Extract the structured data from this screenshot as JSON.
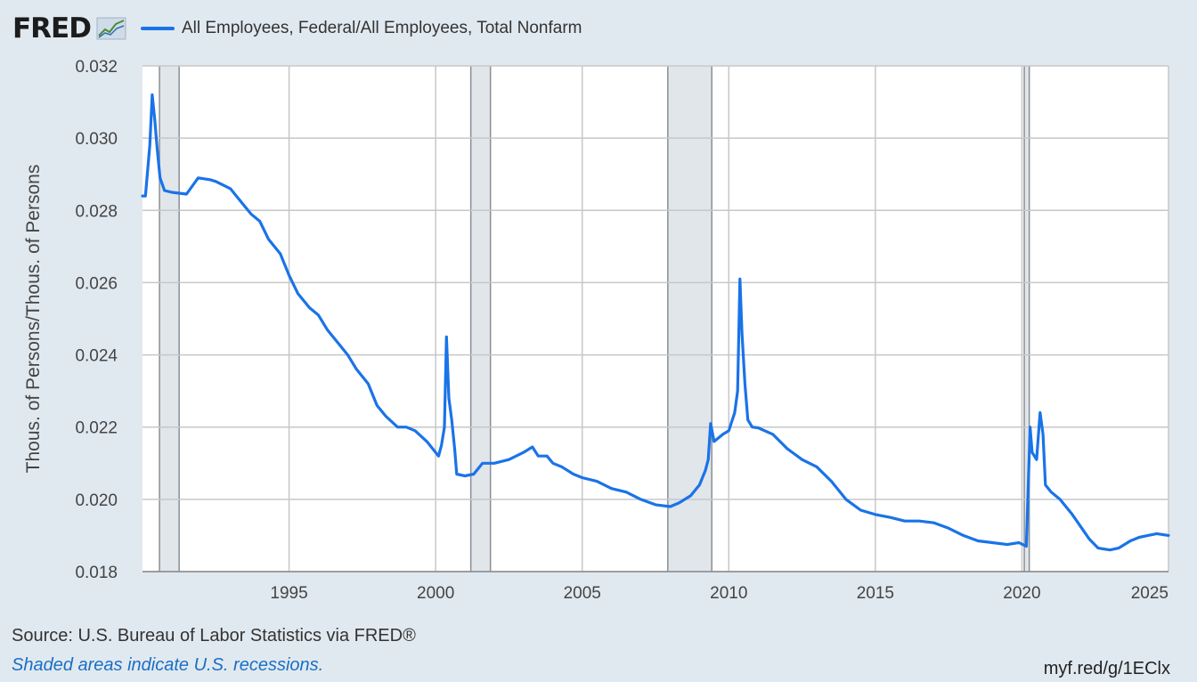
{
  "header": {
    "logo": "FRED",
    "logo_icon": "line-graph-icon"
  },
  "chart_data": {
    "type": "line",
    "title": "",
    "series": [
      {
        "name": "All Employees, Federal/All Employees, Total Nonfarm",
        "color": "#1a73e8",
        "points": [
          [
            1990.0,
            0.0284
          ],
          [
            1990.1,
            0.0284
          ],
          [
            1990.25,
            0.0298
          ],
          [
            1990.33,
            0.0312
          ],
          [
            1990.42,
            0.0305
          ],
          [
            1990.5,
            0.0297
          ],
          [
            1990.6,
            0.0289
          ],
          [
            1990.75,
            0.02855
          ],
          [
            1991.0,
            0.0285
          ],
          [
            1991.5,
            0.02845
          ],
          [
            1991.9,
            0.0289
          ],
          [
            1992.3,
            0.02885
          ],
          [
            1992.5,
            0.0288
          ],
          [
            1993.0,
            0.0286
          ],
          [
            1993.3,
            0.0283
          ],
          [
            1993.7,
            0.0279
          ],
          [
            1994.0,
            0.0277
          ],
          [
            1994.3,
            0.0272
          ],
          [
            1994.7,
            0.0268
          ],
          [
            1995.0,
            0.0262
          ],
          [
            1995.3,
            0.0257
          ],
          [
            1995.7,
            0.0253
          ],
          [
            1996.0,
            0.0251
          ],
          [
            1996.3,
            0.0247
          ],
          [
            1996.7,
            0.0243
          ],
          [
            1997.0,
            0.024
          ],
          [
            1997.3,
            0.0236
          ],
          [
            1997.7,
            0.0232
          ],
          [
            1998.0,
            0.0226
          ],
          [
            1998.3,
            0.0223
          ],
          [
            1998.7,
            0.022
          ],
          [
            1999.0,
            0.022
          ],
          [
            1999.3,
            0.0219
          ],
          [
            1999.7,
            0.0216
          ],
          [
            2000.0,
            0.0213
          ],
          [
            2000.1,
            0.0212
          ],
          [
            2000.2,
            0.0215
          ],
          [
            2000.3,
            0.022
          ],
          [
            2000.37,
            0.0245
          ],
          [
            2000.45,
            0.0228
          ],
          [
            2000.55,
            0.0222
          ],
          [
            2000.65,
            0.0214
          ],
          [
            2000.72,
            0.0207
          ],
          [
            2001.0,
            0.02065
          ],
          [
            2001.3,
            0.0207
          ],
          [
            2001.6,
            0.021
          ],
          [
            2002.0,
            0.021
          ],
          [
            2002.5,
            0.0211
          ],
          [
            2003.0,
            0.0213
          ],
          [
            2003.3,
            0.02145
          ],
          [
            2003.5,
            0.0212
          ],
          [
            2003.8,
            0.0212
          ],
          [
            2004.0,
            0.021
          ],
          [
            2004.3,
            0.0209
          ],
          [
            2004.7,
            0.0207
          ],
          [
            2005.0,
            0.0206
          ],
          [
            2005.5,
            0.0205
          ],
          [
            2006.0,
            0.0203
          ],
          [
            2006.5,
            0.0202
          ],
          [
            2007.0,
            0.02
          ],
          [
            2007.5,
            0.01985
          ],
          [
            2008.0,
            0.0198
          ],
          [
            2008.3,
            0.0199
          ],
          [
            2008.7,
            0.0201
          ],
          [
            2009.0,
            0.0204
          ],
          [
            2009.2,
            0.0208
          ],
          [
            2009.3,
            0.0211
          ],
          [
            2009.38,
            0.0221
          ],
          [
            2009.5,
            0.0216
          ],
          [
            2009.8,
            0.0218
          ],
          [
            2010.0,
            0.0219
          ],
          [
            2010.2,
            0.0224
          ],
          [
            2010.3,
            0.023
          ],
          [
            2010.38,
            0.0261
          ],
          [
            2010.45,
            0.0246
          ],
          [
            2010.55,
            0.0232
          ],
          [
            2010.65,
            0.0222
          ],
          [
            2010.8,
            0.022
          ],
          [
            2011.0,
            0.02198
          ],
          [
            2011.5,
            0.0218
          ],
          [
            2012.0,
            0.0214
          ],
          [
            2012.5,
            0.0211
          ],
          [
            2013.0,
            0.0209
          ],
          [
            2013.5,
            0.0205
          ],
          [
            2014.0,
            0.02
          ],
          [
            2014.5,
            0.0197
          ],
          [
            2015.0,
            0.01958
          ],
          [
            2015.5,
            0.0195
          ],
          [
            2016.0,
            0.0194
          ],
          [
            2016.5,
            0.0194
          ],
          [
            2017.0,
            0.01935
          ],
          [
            2017.5,
            0.0192
          ],
          [
            2018.0,
            0.019
          ],
          [
            2018.5,
            0.01885
          ],
          [
            2019.0,
            0.0188
          ],
          [
            2019.5,
            0.01875
          ],
          [
            2019.9,
            0.0188
          ],
          [
            2020.15,
            0.0187
          ],
          [
            2020.28,
            0.022
          ],
          [
            2020.35,
            0.0213
          ],
          [
            2020.5,
            0.0211
          ],
          [
            2020.62,
            0.0224
          ],
          [
            2020.72,
            0.0218
          ],
          [
            2020.8,
            0.0204
          ],
          [
            2021.0,
            0.0202
          ],
          [
            2021.3,
            0.02
          ],
          [
            2021.7,
            0.0196
          ],
          [
            2022.0,
            0.01925
          ],
          [
            2022.3,
            0.0189
          ],
          [
            2022.6,
            0.01865
          ],
          [
            2023.0,
            0.0186
          ],
          [
            2023.3,
            0.01865
          ],
          [
            2023.7,
            0.01885
          ],
          [
            2024.0,
            0.01895
          ],
          [
            2024.3,
            0.019
          ],
          [
            2024.6,
            0.01905
          ],
          [
            2025.0,
            0.019
          ]
        ]
      }
    ],
    "recessions": [
      [
        1990.58,
        1991.25
      ],
      [
        2001.2,
        2001.87
      ],
      [
        2007.92,
        2009.42
      ],
      [
        2020.08,
        2020.25
      ]
    ],
    "xlim": [
      1990.0,
      2025.0
    ],
    "ylim": [
      0.018,
      0.032
    ],
    "x_ticks": [
      1995,
      2000,
      2005,
      2010,
      2015,
      2020,
      2025
    ],
    "y_ticks": [
      "0.018",
      "0.020",
      "0.022",
      "0.024",
      "0.026",
      "0.028",
      "0.030",
      "0.032"
    ],
    "ylabel": "Thous. of Persons/Thous. of Persons",
    "xlabel": "",
    "grid": true,
    "legend_position": "top-left"
  },
  "footer": {
    "source": "Source: U.S. Bureau of Labor Statistics via FRED®",
    "note": "Shaded areas indicate U.S. recessions.",
    "link": "myf.red/g/1EClx"
  }
}
